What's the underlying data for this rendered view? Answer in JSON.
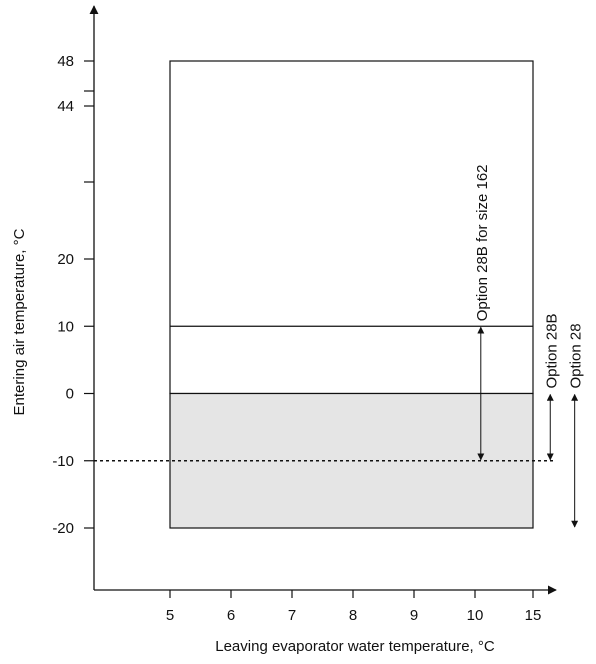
{
  "chart_data": {
    "type": "area",
    "xlabel": "Leaving evaporator water temperature, °C",
    "ylabel": "Entering air temperature, °C",
    "x_ticks": [
      5,
      6,
      7,
      8,
      9,
      10,
      15
    ],
    "y_ticks": [
      48,
      44,
      20,
      10,
      0,
      -10,
      -20
    ],
    "y_break_ticks": [
      46,
      33
    ],
    "regions": [
      {
        "x": [
          5,
          15
        ],
        "y": [
          0,
          48
        ],
        "fill": "#ffffff"
      },
      {
        "x": [
          5,
          15
        ],
        "y": [
          -20,
          0
        ],
        "fill": "#e5e5e5"
      }
    ],
    "boundary_lines": [
      {
        "y": 10,
        "x": [
          5,
          15
        ]
      }
    ],
    "reference_line": {
      "y": -10,
      "x_start": 3.8,
      "x_end": 15.4,
      "style": "dotted"
    },
    "annotations": [
      {
        "label": "Option 28B for size 162",
        "x": 10.5,
        "y_range": [
          -10,
          10
        ]
      },
      {
        "label": "Option 28B",
        "x": 15.3,
        "y_range": [
          -10,
          0
        ]
      },
      {
        "label": "Option 28",
        "x": 15.8,
        "y_range": [
          -20,
          0
        ]
      }
    ],
    "colors": {
      "axis": "#111111",
      "shade": "#e5e5e5",
      "line": "#111111"
    }
  }
}
